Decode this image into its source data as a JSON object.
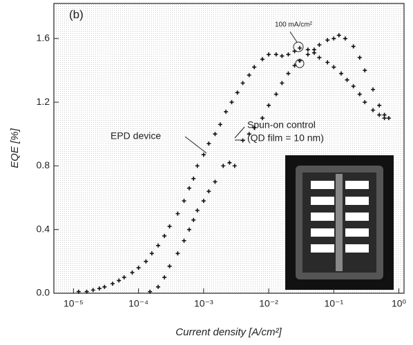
{
  "chart_data": {
    "type": "scatter",
    "x_label": "Current density [A/cm²]",
    "y_label": "EQE [%]",
    "annotations": [
      "(b)",
      "100 mA/cm²",
      "(QD film = 10 nm)"
    ],
    "xscale": "log",
    "xlim": [
      5e-06,
      1.2
    ],
    "xticks": [
      {
        "value": 1e-05,
        "label": "10⁻⁵"
      },
      {
        "value": 0.0001,
        "label": "10⁻⁴"
      },
      {
        "value": 0.001,
        "label": "10⁻³"
      },
      {
        "value": 0.01,
        "label": "10⁻²"
      },
      {
        "value": 0.1,
        "label": "10⁻¹"
      },
      {
        "value": 1,
        "label": "10⁰"
      }
    ],
    "ylim": [
      0,
      1.82
    ],
    "yticks": [
      {
        "value": 0,
        "label": "0.0"
      },
      0.4,
      0.8,
      1.2,
      1.6
    ],
    "series": [
      {
        "name": "EPD device",
        "color": "#111111",
        "x": [
          1.2e-05,
          1.6e-05,
          2e-05,
          2.5e-05,
          3e-05,
          4e-05,
          5e-05,
          6e-05,
          8e-05,
          0.0001,
          0.00013,
          0.00016,
          0.0002,
          0.00025,
          0.0003,
          0.0004,
          0.0005,
          0.0006,
          0.0007,
          0.0008,
          0.001,
          0.0012,
          0.0015,
          0.0018,
          0.0022,
          0.0027,
          0.0033,
          0.004,
          0.005,
          0.006,
          0.008,
          0.01,
          0.013,
          0.016,
          0.02,
          0.025,
          0.03,
          0.04,
          0.05,
          0.06,
          0.08,
          0.1,
          0.13,
          0.16,
          0.2,
          0.25,
          0.3,
          0.4,
          0.5,
          0.6
        ],
        "values": [
          0.01,
          0.01,
          0.02,
          0.03,
          0.04,
          0.06,
          0.08,
          0.1,
          0.13,
          0.16,
          0.2,
          0.25,
          0.3,
          0.36,
          0.42,
          0.5,
          0.58,
          0.66,
          0.72,
          0.8,
          0.87,
          0.94,
          1.0,
          1.06,
          1.14,
          1.2,
          1.26,
          1.32,
          1.37,
          1.42,
          1.47,
          1.5,
          1.5,
          1.49,
          1.5,
          1.52,
          1.54,
          1.53,
          1.51,
          1.48,
          1.45,
          1.42,
          1.38,
          1.34,
          1.3,
          1.25,
          1.2,
          1.15,
          1.12,
          1.1
        ]
      },
      {
        "name": "Spun-on control",
        "color": "#111111",
        "x": [
          0.00015,
          0.0002,
          0.00025,
          0.0003,
          0.0004,
          0.0005,
          0.0006,
          0.0007,
          0.0008,
          0.001,
          0.0012,
          0.0015,
          0.002,
          0.0025,
          0.003,
          0.004,
          0.005,
          0.006,
          0.008,
          0.01,
          0.013,
          0.016,
          0.02,
          0.025,
          0.03,
          0.04,
          0.05,
          0.06,
          0.08,
          0.1,
          0.12,
          0.15,
          0.2,
          0.25,
          0.3,
          0.4,
          0.5,
          0.6,
          0.7
        ],
        "values": [
          0.01,
          0.04,
          0.1,
          0.17,
          0.25,
          0.33,
          0.4,
          0.46,
          0.52,
          0.58,
          0.64,
          0.7,
          0.8,
          0.82,
          0.8,
          0.96,
          1.0,
          1.04,
          1.1,
          1.18,
          1.25,
          1.32,
          1.38,
          1.43,
          1.46,
          1.5,
          1.53,
          1.56,
          1.59,
          1.6,
          1.62,
          1.6,
          1.55,
          1.48,
          1.4,
          1.28,
          1.18,
          1.12,
          1.1
        ]
      }
    ]
  }
}
